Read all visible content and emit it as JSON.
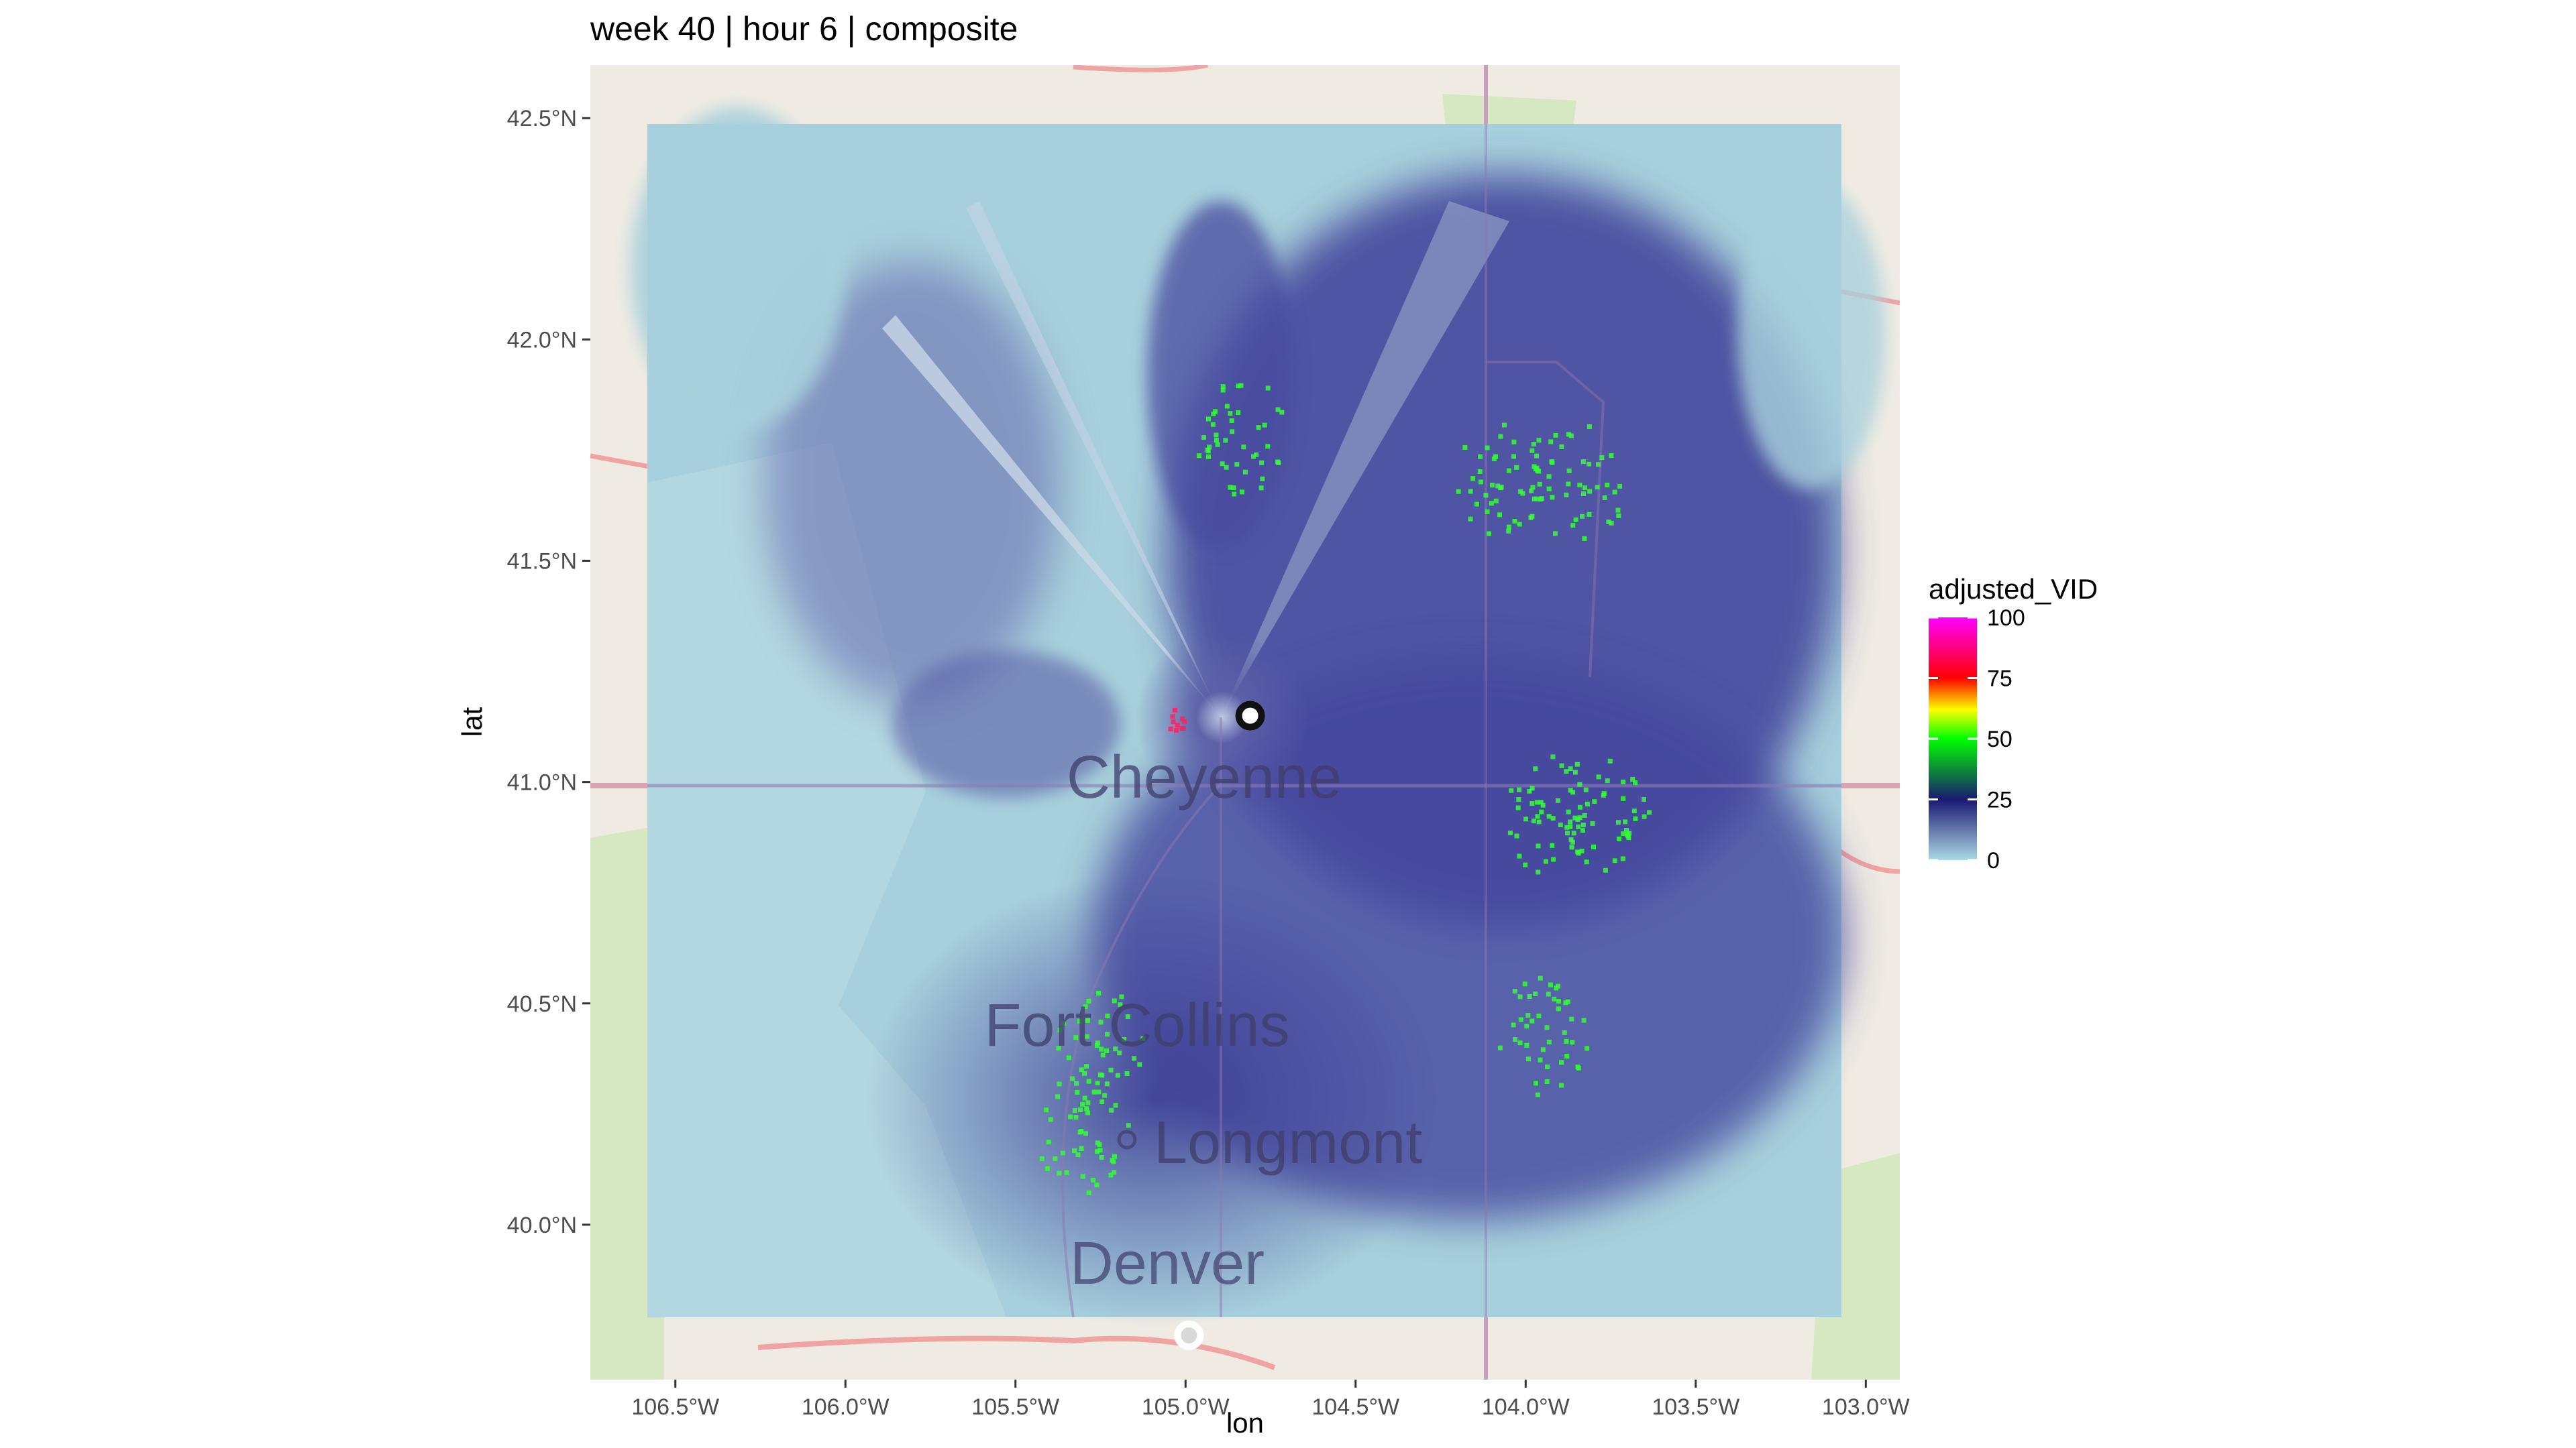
{
  "chart_data": {
    "type": "heatmap",
    "title": "week 40 | hour 6 | composite",
    "xlabel": "lon",
    "ylabel": "lat",
    "xlim": [
      -106.75,
      -102.9
    ],
    "ylim": [
      39.65,
      42.62
    ],
    "xticks": [
      -106.5,
      -106.0,
      -105.5,
      -105.0,
      -104.5,
      -104.0,
      -103.5,
      -103.0
    ],
    "xtick_labels": [
      "106.5°W",
      "106.0°W",
      "105.5°W",
      "105.0°W",
      "104.5°W",
      "104.0°W",
      "103.5°W",
      "103.0°W"
    ],
    "yticks": [
      40.0,
      40.5,
      41.0,
      41.5,
      42.0,
      42.5
    ],
    "ytick_labels": [
      "40.0°N",
      "40.5°N",
      "41.0°N",
      "41.5°N",
      "42.0°N",
      "42.5°N"
    ],
    "raster_extent": {
      "lon": [
        -106.57,
        -103.03
      ],
      "lat": [
        39.8,
        42.48
      ]
    },
    "map_labels": [
      "Cheyenne",
      "Fort Collins",
      "Longmont",
      "Denver"
    ],
    "radar_sites": [
      {
        "lon": -104.81,
        "lat": 41.15,
        "style": "dark-ring"
      },
      {
        "lon": -104.99,
        "lat": 39.75,
        "style": "light-ring"
      }
    ],
    "hotspots": [
      {
        "lon": -104.85,
        "lat": 41.79,
        "value": 45
      },
      {
        "lon": -103.85,
        "lat": 41.68,
        "value": 45
      },
      {
        "lon": -104.07,
        "lat": 41.69,
        "value": 40
      },
      {
        "lon": -103.93,
        "lat": 40.93,
        "value": 50
      },
      {
        "lon": -103.78,
        "lat": 40.94,
        "value": 45
      },
      {
        "lon": -105.26,
        "lat": 40.4,
        "value": 50
      },
      {
        "lon": -105.31,
        "lat": 40.21,
        "value": 45
      },
      {
        "lon": -105.02,
        "lat": 41.14,
        "value": 90
      },
      {
        "lon": -103.95,
        "lat": 40.43,
        "value": 40
      }
    ],
    "legend": {
      "title": "adjusted_VID",
      "labels": [
        "100",
        "75",
        "50",
        "25",
        "0"
      ],
      "values": [
        100,
        75,
        50,
        25,
        0
      ],
      "colors": [
        "#ff00ff",
        "#ff0000",
        "#ffff00",
        "#00ff00",
        "#191970",
        "#add8e6"
      ],
      "position": "right"
    },
    "grid": true
  }
}
